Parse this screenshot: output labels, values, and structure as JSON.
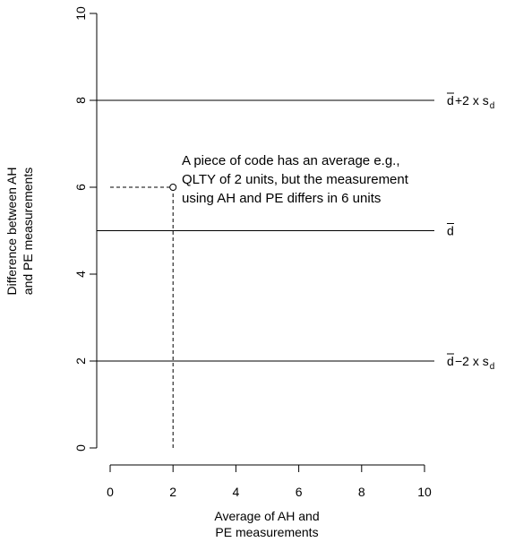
{
  "chart_data": {
    "type": "scatter",
    "title": "",
    "xlabel": [
      "Average of AH and",
      "PE measurements"
    ],
    "ylabel": [
      "Difference between AH",
      "and PE measurements"
    ],
    "xlim": [
      0,
      10
    ],
    "ylim": [
      0,
      10
    ],
    "x_ticks": [
      "0",
      "2",
      "4",
      "6",
      "8",
      "10"
    ],
    "y_ticks": [
      "0",
      "2",
      "4",
      "6",
      "8",
      "10"
    ],
    "reference_lines": [
      {
        "y": 8,
        "label": "d̅+2 x s_d",
        "label_main": "+2 x s",
        "label_sub": "d",
        "style": "solid"
      },
      {
        "y": 5,
        "label": "d̅",
        "label_main": "",
        "label_sub": "",
        "style": "solid"
      },
      {
        "y": 2,
        "label": "d̅−2 x s_d",
        "label_main": "−2 x s",
        "label_sub": "d",
        "style": "solid"
      }
    ],
    "points": [
      {
        "x": 2,
        "y": 6
      }
    ],
    "guides": [
      {
        "from": [
          0,
          6
        ],
        "to": [
          2,
          6
        ],
        "style": "dashed"
      },
      {
        "from": [
          2,
          6
        ],
        "to": [
          2,
          0
        ],
        "style": "dashed"
      }
    ],
    "annotation": [
      "A piece of code has an average e.g.,",
      "QLTY of 2 units, but the measurement",
      "using AH and PE differs in 6 units"
    ]
  }
}
